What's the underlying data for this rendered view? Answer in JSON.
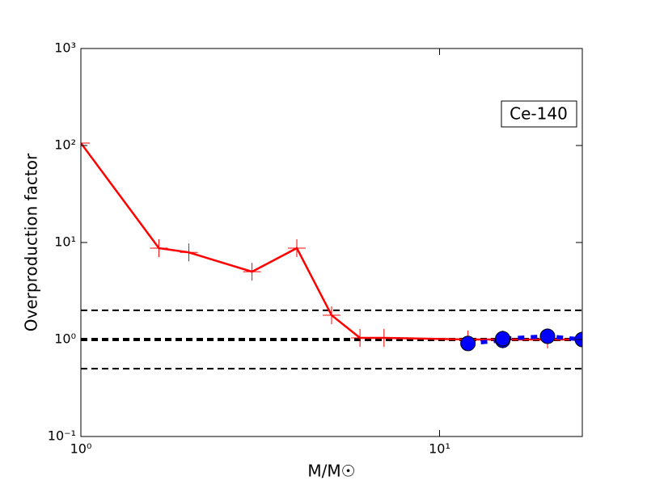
{
  "chart_data": {
    "type": "line",
    "xlabel": "M/M☉",
    "ylabel": "Overproduction factor",
    "annotation": "Ce-140",
    "xscale": "log",
    "yscale": "log",
    "xlim": [
      1,
      25
    ],
    "ylim": [
      0.1,
      1000
    ],
    "xticks": [
      {
        "value": 1,
        "label": "10⁰"
      },
      {
        "value": 10,
        "label": "10¹"
      }
    ],
    "yticks": [
      {
        "value": 0.1,
        "label": "10⁻¹"
      },
      {
        "value": 1,
        "label": "10⁰"
      },
      {
        "value": 10,
        "label": "10¹"
      },
      {
        "value": 100,
        "label": "10²"
      },
      {
        "value": 1000,
        "label": "10³"
      }
    ],
    "hlines": [
      {
        "value": 2,
        "color": "#000000",
        "width": 2
      },
      {
        "value": 1,
        "color": "#000000",
        "width": 4
      },
      {
        "value": 0.5,
        "color": "#000000",
        "width": 2
      }
    ],
    "series": [
      {
        "color": "#ff0000",
        "marker": "+",
        "linestyle": "solid",
        "x": [
          1,
          1.65,
          2,
          3,
          4,
          5,
          6,
          7,
          12,
          15,
          20,
          25
        ],
        "values": [
          106,
          8.75,
          7.9,
          5.0,
          8.75,
          1.78,
          1.04,
          1.04,
          1.0,
          1.0,
          1.0,
          1.0
        ]
      },
      {
        "color": "#0000ff",
        "marker": "o",
        "linestyle": "dashed",
        "x": [
          12,
          15,
          15,
          20,
          25
        ],
        "values": [
          0.91,
          0.98,
          1.02,
          1.08,
          1.0
        ]
      }
    ]
  }
}
